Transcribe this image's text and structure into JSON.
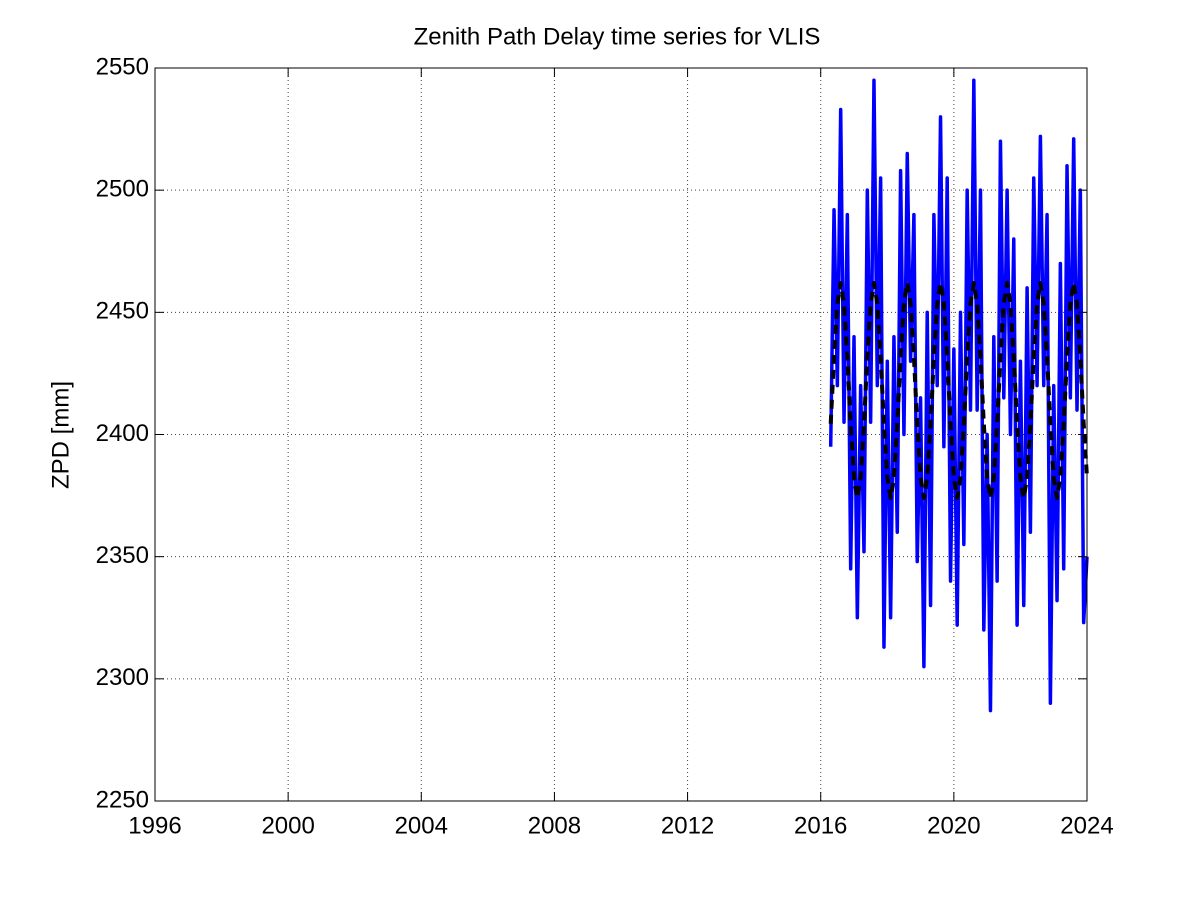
{
  "chart_data": {
    "type": "line",
    "title": "Zenith Path Delay time series for VLIS",
    "y_label": "ZPD [mm]",
    "x": [
      2016.3,
      2016.4,
      2016.5,
      2016.6,
      2016.7,
      2016.8,
      2016.9,
      2017.0,
      2017.1,
      2017.2,
      2017.3,
      2017.4,
      2017.5,
      2017.6,
      2017.7,
      2017.8,
      2017.9,
      2018.0,
      2018.1,
      2018.2,
      2018.3,
      2018.4,
      2018.5,
      2018.6,
      2018.7,
      2018.8,
      2018.9,
      2019.0,
      2019.1,
      2019.2,
      2019.3,
      2019.4,
      2019.5,
      2019.6,
      2019.7,
      2019.8,
      2019.9,
      2020.0,
      2020.1,
      2020.2,
      2020.3,
      2020.4,
      2020.5,
      2020.6,
      2020.7,
      2020.8,
      2020.9,
      2021.0,
      2021.1,
      2021.2,
      2021.3,
      2021.4,
      2021.5,
      2021.6,
      2021.7,
      2021.8,
      2021.9,
      2022.0,
      2022.1,
      2022.2,
      2022.3,
      2022.4,
      2022.5,
      2022.6,
      2022.7,
      2022.8,
      2022.9,
      2023.0,
      2023.1,
      2023.2,
      2023.3,
      2023.4,
      2023.5,
      2023.6,
      2023.7,
      2023.8,
      2023.9,
      2024.0
    ],
    "series": [
      {
        "color": "#0000ff",
        "dashed": false,
        "width": 3.5,
        "values": [
          2395,
          2492,
          2420,
          2533,
          2405,
          2490,
          2345,
          2440,
          2325,
          2420,
          2352,
          2500,
          2405,
          2545,
          2420,
          2505,
          2313,
          2430,
          2325,
          2440,
          2360,
          2508,
          2400,
          2515,
          2430,
          2490,
          2348,
          2415,
          2305,
          2450,
          2330,
          2490,
          2420,
          2530,
          2395,
          2505,
          2340,
          2435,
          2322,
          2450,
          2355,
          2500,
          2410,
          2545,
          2410,
          2500,
          2320,
          2400,
          2287,
          2440,
          2340,
          2520,
          2415,
          2500,
          2400,
          2480,
          2322,
          2430,
          2330,
          2460,
          2360,
          2505,
          2420,
          2522,
          2420,
          2490,
          2290,
          2420,
          2332,
          2470,
          2345,
          2510,
          2415,
          2521,
          2410,
          2500,
          2323,
          2350
        ]
      },
      {
        "color": "#000000",
        "dashed": true,
        "width": 4,
        "values": [
          2404.4,
          2431.6,
          2453.6,
          2462,
          2453.6,
          2431.6,
          2404.4,
          2382.4,
          2374,
          2382.4,
          2404.4,
          2431.6,
          2453.6,
          2462,
          2453.6,
          2431.6,
          2404.4,
          2382.4,
          2374,
          2382.4,
          2404.4,
          2431.6,
          2453.6,
          2462,
          2453.6,
          2431.6,
          2404.4,
          2382.4,
          2374,
          2382.4,
          2404.4,
          2431.6,
          2453.6,
          2462,
          2453.6,
          2431.6,
          2404.4,
          2382.4,
          2374,
          2382.4,
          2404.4,
          2431.6,
          2453.6,
          2462,
          2453.6,
          2431.6,
          2404.4,
          2382.4,
          2374,
          2382.4,
          2404.4,
          2431.6,
          2453.6,
          2462,
          2453.6,
          2431.6,
          2404.4,
          2382.4,
          2374,
          2382.4,
          2404.4,
          2431.6,
          2453.6,
          2462,
          2453.6,
          2431.6,
          2404.4,
          2382.4,
          2374,
          2382.4,
          2404.4,
          2431.6,
          2453.6,
          2462,
          2453.6,
          2431.6,
          2404.4,
          2382.4
        ]
      }
    ],
    "xlim": [
      1996,
      2024
    ],
    "xticks": [
      1996,
      2000,
      2004,
      2008,
      2012,
      2016,
      2020,
      2024
    ],
    "ylim": [
      2250,
      2550
    ],
    "yticks": [
      2250,
      2300,
      2350,
      2400,
      2450,
      2500,
      2550
    ],
    "grid": true
  }
}
